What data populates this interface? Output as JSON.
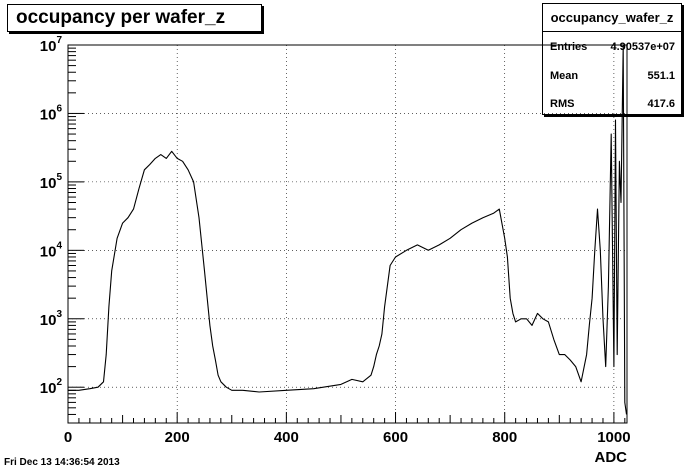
{
  "title": "occupancy per wafer_z",
  "stats": {
    "name": "occupancy_wafer_z",
    "rows": [
      {
        "label": "Entries",
        "value": "4.90537e+07"
      },
      {
        "label": "Mean",
        "value": "551.1"
      },
      {
        "label": "RMS",
        "value": "417.6"
      }
    ]
  },
  "footer": "Fri Dec 13 14:36:54 2013",
  "chart_data": {
    "type": "line",
    "title": "occupancy per wafer_z",
    "xlabel": "ADC",
    "ylabel": "",
    "xlim": [
      0,
      1024
    ],
    "ylim": [
      30,
      10000000
    ],
    "log_y": true,
    "grid": true,
    "x_ticks": [
      0,
      200,
      400,
      600,
      800,
      1000
    ],
    "x_tick_labels": [
      "0",
      "200",
      "400",
      "600",
      "800",
      "1000"
    ],
    "y_ticks": [
      100,
      1000,
      10000,
      100000,
      1000000,
      10000000
    ],
    "y_tick_labels": [
      {
        "base": "10",
        "exp": "2"
      },
      {
        "base": "10",
        "exp": "3"
      },
      {
        "base": "10",
        "exp": "4"
      },
      {
        "base": "10",
        "exp": "5"
      },
      {
        "base": "10",
        "exp": "6"
      },
      {
        "base": "10",
        "exp": "7"
      }
    ],
    "series": [
      {
        "x": [
          0,
          20,
          40,
          55,
          65,
          70,
          75,
          80,
          90,
          100,
          110,
          120,
          130,
          140,
          150,
          160,
          170,
          180,
          190,
          200,
          210,
          220,
          230,
          240,
          250,
          255,
          260,
          265,
          270,
          275,
          280,
          290,
          300,
          320,
          350,
          400,
          450,
          500,
          520,
          540,
          555,
          560,
          565,
          570,
          575,
          580,
          590,
          600,
          620,
          640,
          660,
          680,
          700,
          720,
          740,
          760,
          780,
          790,
          800,
          805,
          810,
          815,
          820,
          830,
          840,
          850,
          860,
          870,
          880,
          890,
          900,
          910,
          920,
          930,
          940,
          950,
          955,
          960,
          965,
          970,
          975,
          980,
          985,
          990,
          995,
          1000,
          1003,
          1006,
          1010,
          1013,
          1017,
          1020,
          1023
        ],
        "y": [
          90,
          90,
          95,
          100,
          120,
          300,
          1500,
          5000,
          15000,
          25000,
          30000,
          40000,
          80000,
          150000,
          180000,
          220000,
          250000,
          220000,
          280000,
          220000,
          200000,
          150000,
          100000,
          30000,
          5000,
          2000,
          800,
          400,
          250,
          150,
          120,
          100,
          90,
          90,
          85,
          90,
          95,
          110,
          130,
          120,
          150,
          200,
          300,
          400,
          600,
          1500,
          6000,
          8000,
          10000,
          12000,
          10000,
          12000,
          15000,
          20000,
          25000,
          30000,
          35000,
          40000,
          15000,
          8000,
          2000,
          1200,
          900,
          1000,
          1000,
          800,
          1200,
          1000,
          900,
          500,
          300,
          300,
          250,
          200,
          120,
          300,
          800,
          2000,
          10000,
          40000,
          10000,
          1000,
          200,
          3000,
          500000,
          200,
          800000,
          300,
          200000,
          50000,
          10000000,
          60,
          40
        ]
      }
    ]
  }
}
